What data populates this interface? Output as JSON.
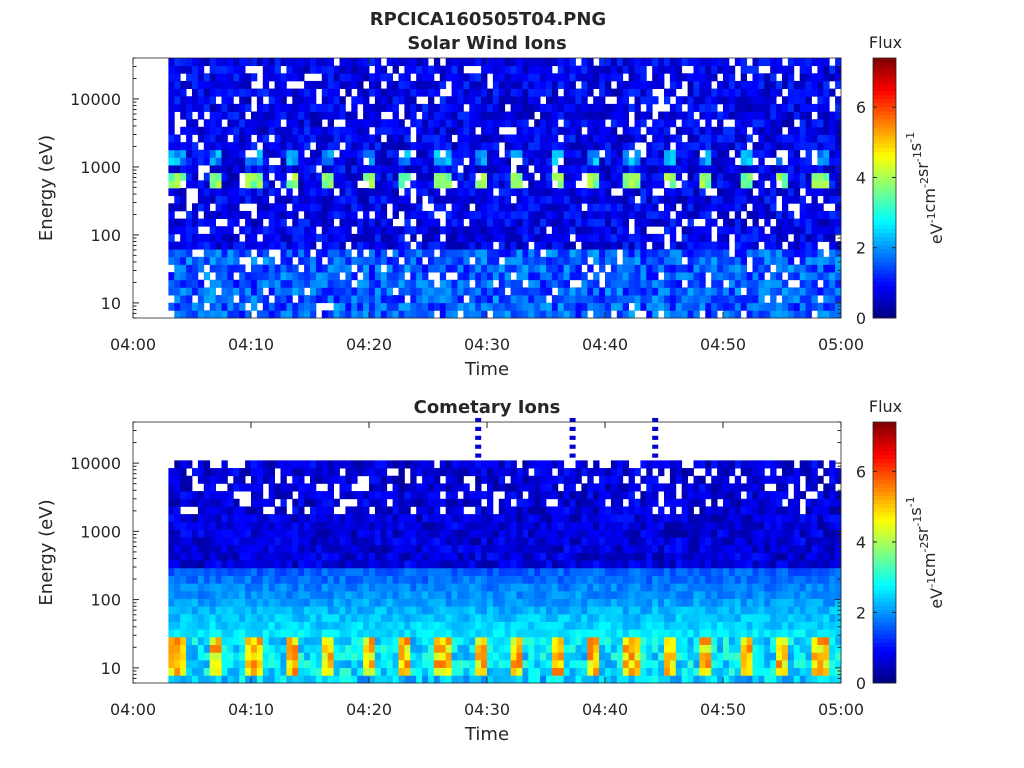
{
  "figure": {
    "title": "RPCICA160505T04.PNG"
  },
  "chart_data": [
    {
      "type": "heatmap",
      "title": "Solar Wind Ions",
      "xlabel": "Time",
      "ylabel": "Energy (eV)",
      "x_ticks": [
        "04:00",
        "04:10",
        "04:20",
        "04:30",
        "04:40",
        "04:50",
        "05:00"
      ],
      "xlim": [
        "04:00",
        "05:00"
      ],
      "y_scale": "log",
      "y_ticks": [
        "10",
        "100",
        "1000",
        "10000"
      ],
      "ylim": [
        6,
        40000
      ],
      "data_start": "04:03",
      "data_end": "05:00",
      "sweep_period_min": 3.2,
      "bands": [
        {
          "emin": 500,
          "emax": 900,
          "peak_flux": 4.0,
          "description": "periodic solar wind beam"
        },
        {
          "emin": 1200,
          "emax": 1600,
          "peak_flux": 2.5
        },
        {
          "emin": 6,
          "emax": 60,
          "peak_flux": 2.0
        }
      ],
      "colorbar": {
        "label": "Flux",
        "units": "eV-1cm-2sr-1s-1",
        "ticks": [
          "0",
          "2",
          "4",
          "6"
        ],
        "range": [
          0,
          7.4
        ],
        "colormap": "jet"
      }
    },
    {
      "type": "heatmap",
      "title": "Cometary Ions",
      "xlabel": "Time",
      "ylabel": "Energy (eV)",
      "x_ticks": [
        "04:00",
        "04:10",
        "04:20",
        "04:30",
        "04:40",
        "04:50",
        "05:00"
      ],
      "xlim": [
        "04:00",
        "05:00"
      ],
      "y_scale": "log",
      "y_ticks": [
        "10",
        "100",
        "1000",
        "10000"
      ],
      "ylim": [
        6,
        40000
      ],
      "data_start": "04:03",
      "data_end": "05:00",
      "sweep_period_min": 3.2,
      "high_energy_spikes": [
        "04:29",
        "04:37",
        "04:44"
      ],
      "bands": [
        {
          "emin": 8,
          "emax": 30,
          "peak_flux": 5.5,
          "description": "periodic cometary ion maxima"
        },
        {
          "emin": 30,
          "emax": 300,
          "peak_flux": 2.5
        }
      ],
      "colorbar": {
        "label": "Flux",
        "units": "eV-1cm-2sr-1s-1",
        "ticks": [
          "0",
          "2",
          "4",
          "6"
        ],
        "range": [
          0,
          7.4
        ],
        "colormap": "jet"
      }
    }
  ]
}
